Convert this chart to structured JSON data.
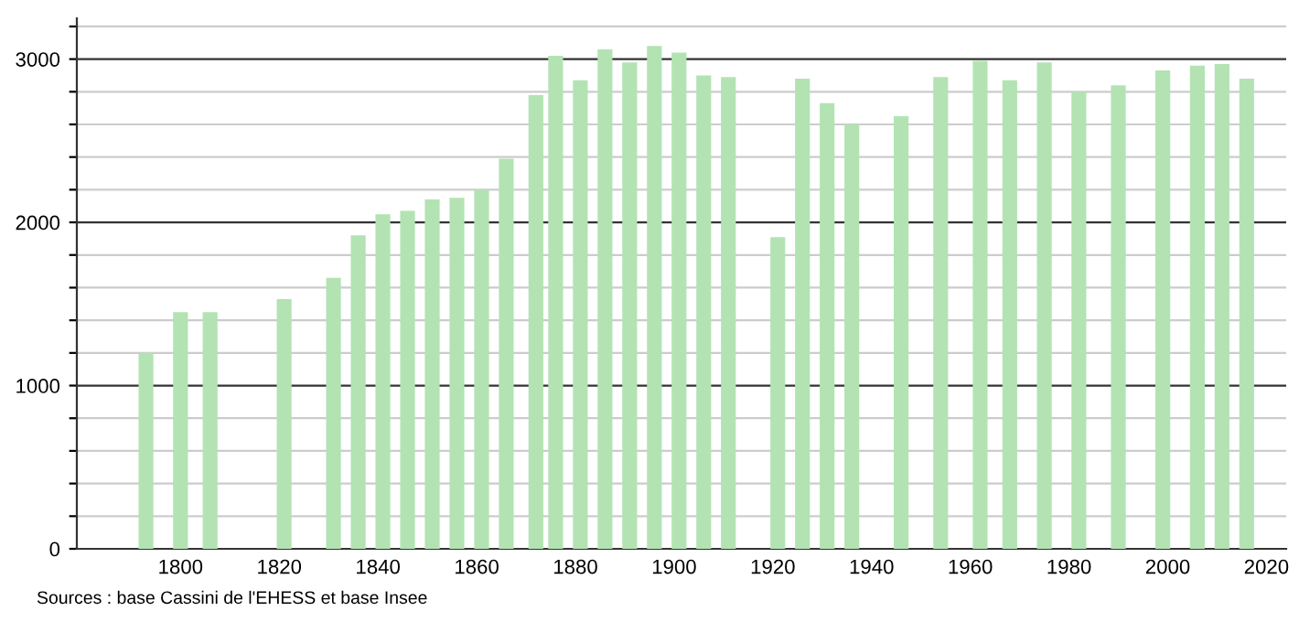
{
  "chart_data": {
    "type": "bar",
    "x": [
      1793,
      1800,
      1806,
      1821,
      1831,
      1836,
      1841,
      1846,
      1851,
      1856,
      1861,
      1866,
      1872,
      1876,
      1881,
      1886,
      1891,
      1896,
      1901,
      1906,
      1911,
      1921,
      1926,
      1931,
      1936,
      1946,
      1954,
      1962,
      1968,
      1975,
      1982,
      1990,
      1999,
      2006,
      2011,
      2016
    ],
    "values": [
      1200,
      1450,
      1450,
      1530,
      1660,
      1920,
      2050,
      2070,
      2140,
      2150,
      2200,
      2390,
      2780,
      3020,
      2870,
      3060,
      2980,
      3080,
      3040,
      2900,
      2890,
      1910,
      2880,
      2730,
      2600,
      2650,
      2890,
      2990,
      2870,
      2980,
      2800,
      2840,
      2930,
      2960,
      2970,
      2880
    ],
    "color": "#b3e3b3",
    "xlim": [
      1779,
      2024
    ],
    "xticks": [
      1800,
      1820,
      1840,
      1860,
      1880,
      1900,
      1920,
      1940,
      1960,
      1980,
      2000,
      2020
    ],
    "ylim": [
      0,
      3250
    ],
    "yticks": [
      0,
      {
        "value": 200,
        "label": null
      },
      {
        "value": 400,
        "label": null
      },
      {
        "value": 600,
        "label": null
      },
      {
        "value": 800,
        "label": null
      },
      1000,
      {
        "value": 1200,
        "label": null
      },
      {
        "value": 1400,
        "label": null
      },
      {
        "value": 1600,
        "label": null
      },
      {
        "value": 1800,
        "label": null
      },
      2000,
      {
        "value": 2200,
        "label": null
      },
      {
        "value": 2400,
        "label": null
      },
      {
        "value": 2600,
        "label": null
      },
      {
        "value": 2800,
        "label": null
      },
      3000,
      {
        "value": 3200,
        "label": null
      }
    ],
    "grid": "y",
    "annotations": [
      "Sources : base Cassini de l'EHESS et base Insee"
    ]
  }
}
